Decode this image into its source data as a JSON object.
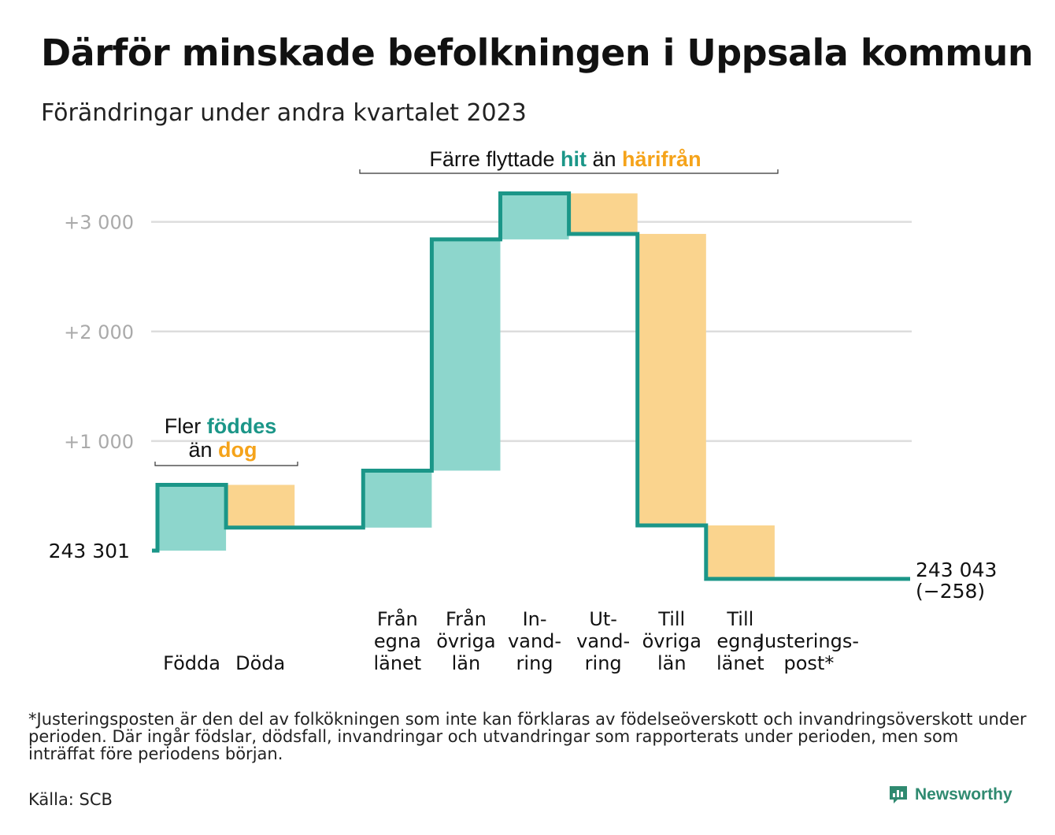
{
  "header": {
    "title": "Därför minskade befolkningen i Uppsala kommun",
    "subtitle": "Förändringar under andra kvartalet 2023"
  },
  "chart_data": {
    "type": "waterfall",
    "start_value": 243301,
    "start_label": "243 301",
    "end_value": 243043,
    "end_label": "243 043",
    "end_change_label": "(−258)",
    "y_axis": {
      "tick_offsets": [
        1000,
        2000,
        3000
      ],
      "tick_labels": [
        "+1 000",
        "+2 000",
        "+3 000"
      ],
      "range": [
        -500,
        3300
      ]
    },
    "grid": true,
    "steps": [
      {
        "label_lines": [
          "Födda"
        ],
        "delta": 600,
        "kind": "in"
      },
      {
        "label_lines": [
          "Döda"
        ],
        "delta": -390,
        "kind": "out"
      },
      {
        "label_lines": [],
        "delta": 0,
        "kind": "gap"
      },
      {
        "label_lines": [
          "Från",
          "egna",
          "länet"
        ],
        "delta": 520,
        "kind": "in"
      },
      {
        "label_lines": [
          "Från",
          "övriga",
          "län"
        ],
        "delta": 2110,
        "kind": "in"
      },
      {
        "label_lines": [
          "In-",
          "vand-",
          "ring"
        ],
        "delta": 420,
        "kind": "in"
      },
      {
        "label_lines": [
          "Ut-",
          "vand-",
          "ring"
        ],
        "delta": -370,
        "kind": "out"
      },
      {
        "label_lines": [
          "Till",
          "övriga",
          "län"
        ],
        "delta": -2660,
        "kind": "out"
      },
      {
        "label_lines": [
          "Till",
          "egna",
          "länet"
        ],
        "delta": -488,
        "kind": "out"
      },
      {
        "label_lines": [
          "Justerings-",
          "post*"
        ],
        "delta": 0,
        "kind": "flat"
      }
    ],
    "annotations": [
      {
        "parts": [
          {
            "text": "Fler ",
            "style": "plain"
          },
          {
            "text": "föddes",
            "style": "in"
          }
        ],
        "line2": [
          {
            "text": "än ",
            "style": "plain"
          },
          {
            "text": "dog",
            "style": "out"
          }
        ],
        "span": [
          0,
          1
        ]
      },
      {
        "parts": [
          {
            "text": "Färre flyttade ",
            "style": "plain"
          },
          {
            "text": "hit",
            "style": "in"
          },
          {
            "text": " än ",
            "style": "plain"
          },
          {
            "text": "härifrån",
            "style": "out"
          }
        ],
        "span": [
          3,
          8
        ]
      }
    ],
    "colors": {
      "in_fill": "#8dd6cc",
      "out_fill": "#fad48e",
      "line": "#1b9688",
      "in_text": "#1b9688",
      "out_text": "#f5a31a",
      "grid": "#dddddd",
      "tick_text": "#aaaaaa"
    }
  },
  "footer": {
    "note": "*Justeringsposten är den del av folkökningen som inte kan förklaras av födelseöverskott och invandringsöverskott under perioden. Där ingår födslar, dödsfall, invandringar och utvandringar som rapporterats under perioden, men som inträffat före periodens början.",
    "source": "Källa: SCB",
    "brand": "Newsworthy",
    "brand_icon": "newsworthy-logo-icon",
    "brand_color": "#2f8a70"
  }
}
